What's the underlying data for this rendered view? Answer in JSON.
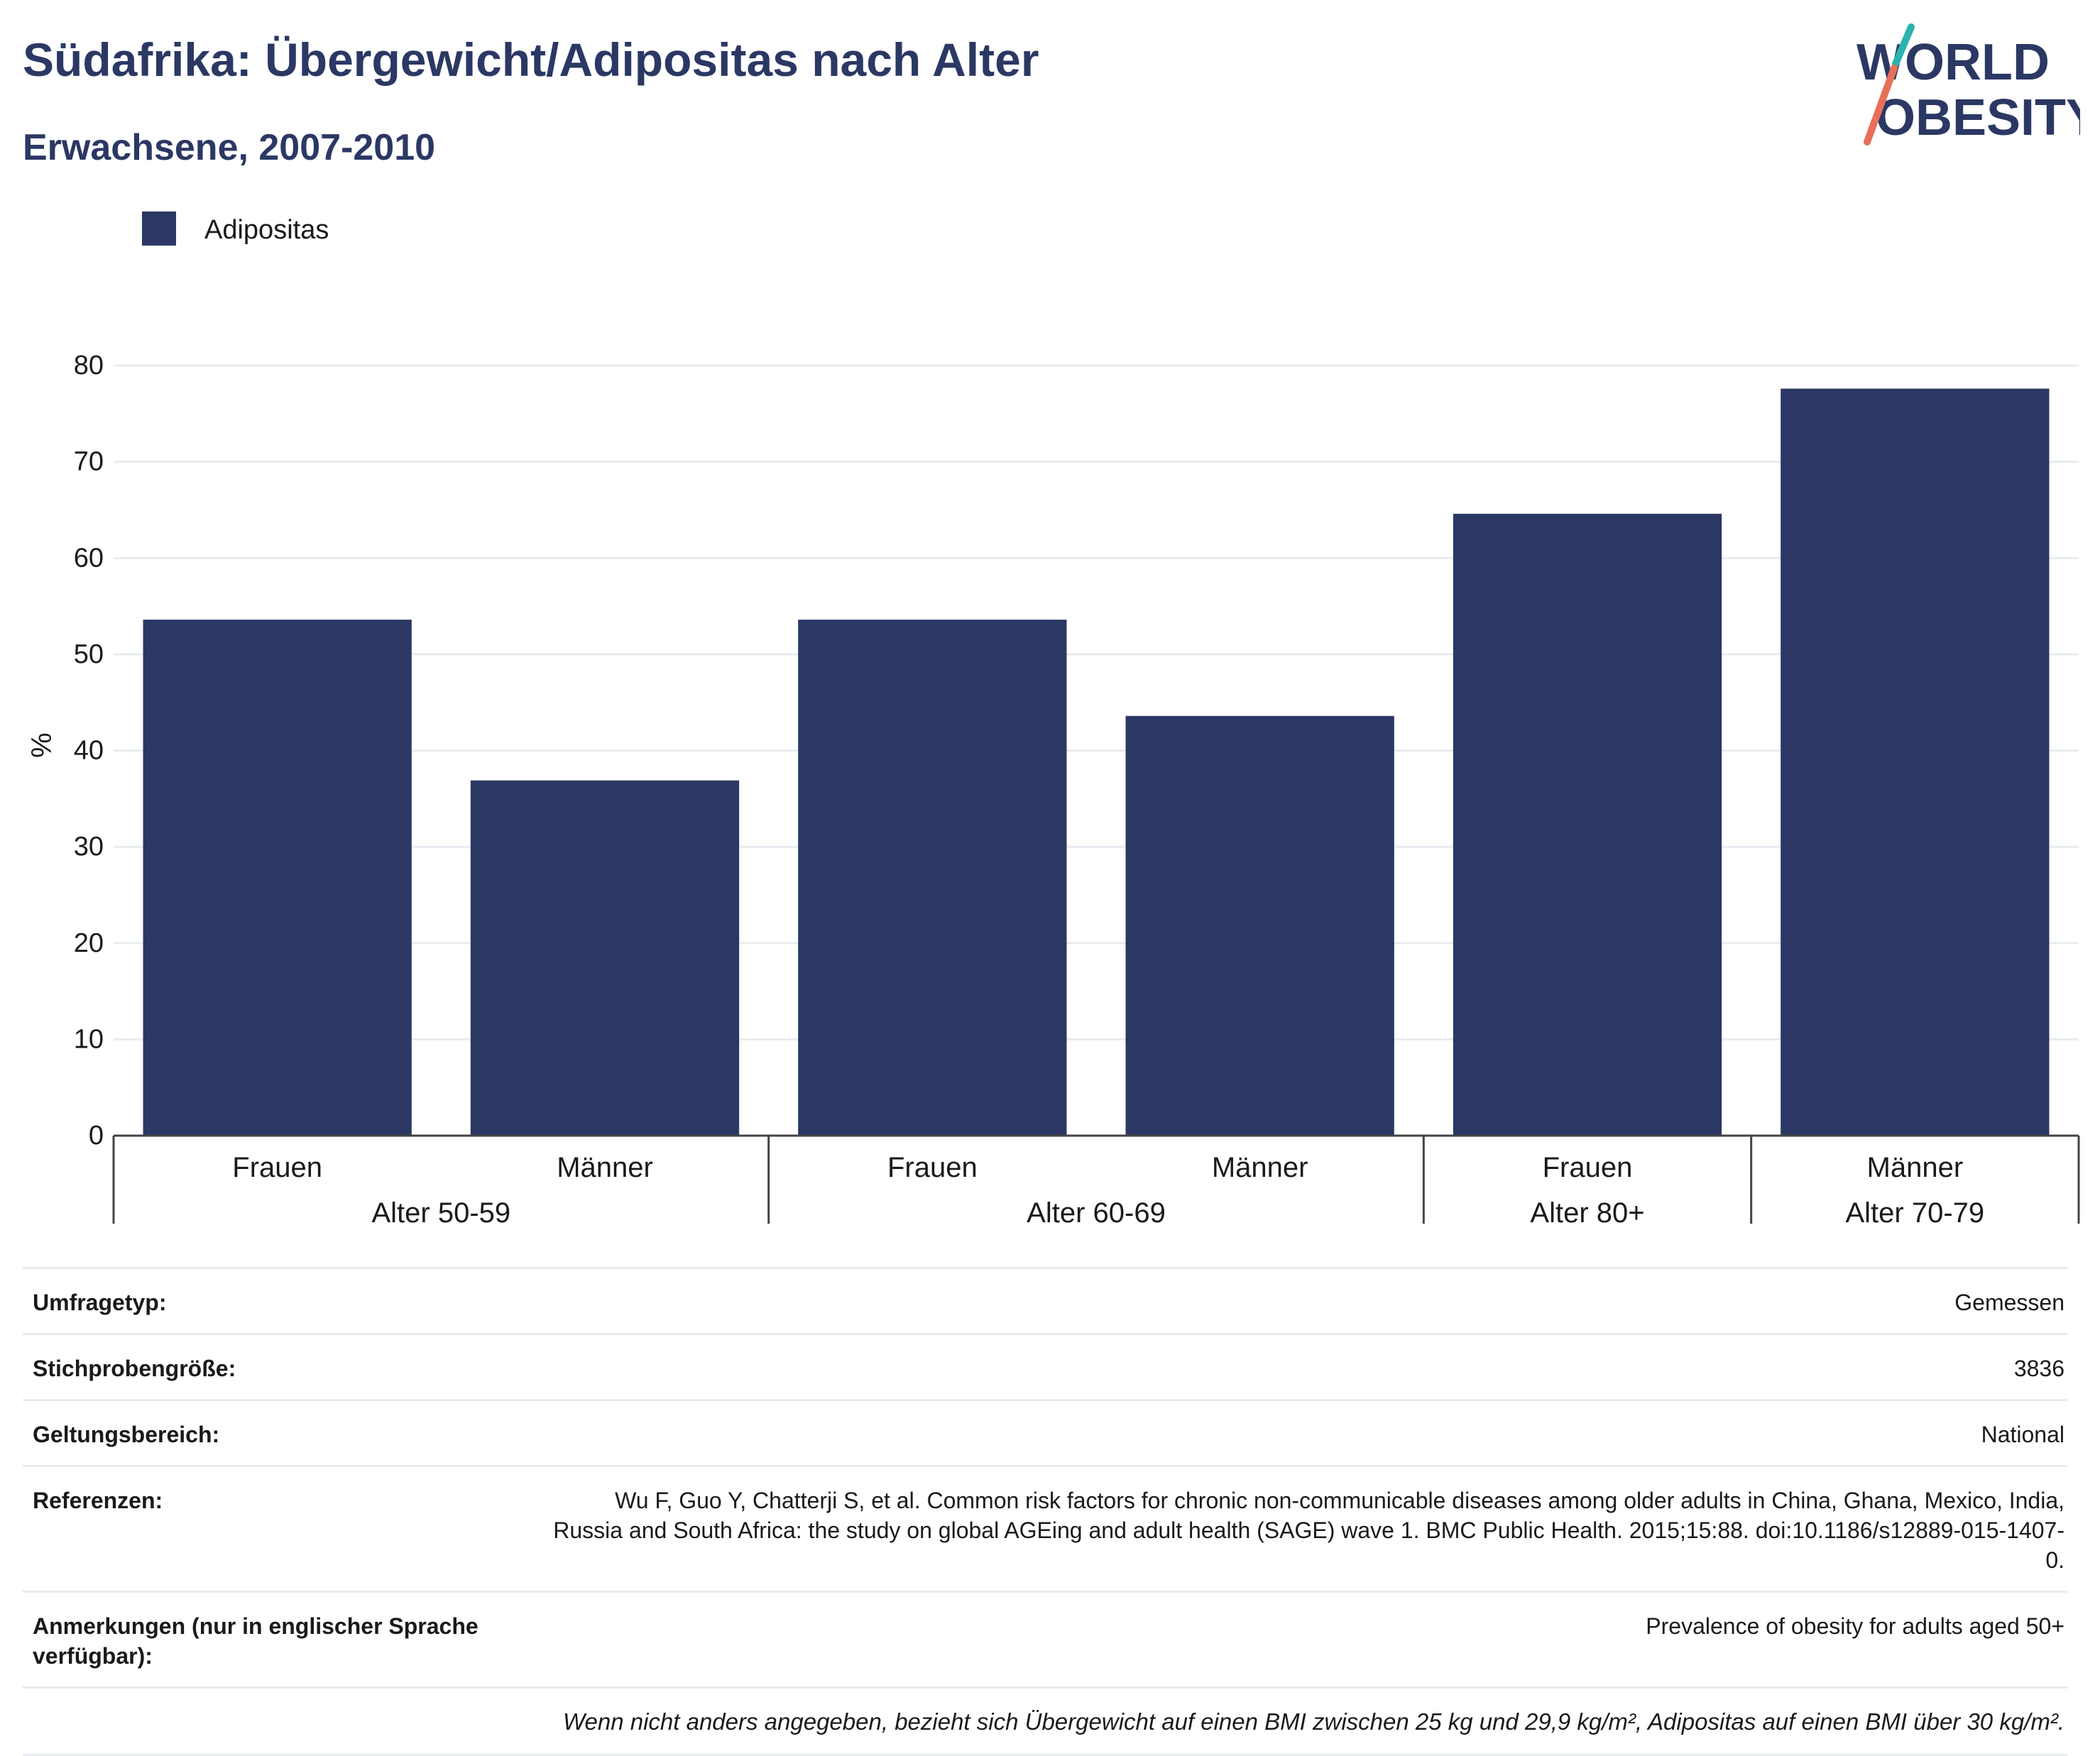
{
  "header": {
    "title": "Südafrika: Übergewicht/Adipositas nach Alter",
    "subtitle": "Erwachsene, 2007-2010"
  },
  "logo": {
    "line1": "WORLD",
    "line2": "OBESITY",
    "colors": {
      "text": "#2b3864",
      "slash_top": "#2bb3ad",
      "slash_bottom": "#e8705a"
    }
  },
  "chart_data": {
    "type": "bar",
    "title": "Südafrika: Übergewicht/Adipositas nach Alter",
    "subtitle": "Erwachsene, 2007-2010",
    "ylabel": "%",
    "xlabel": "",
    "ylim": [
      0,
      80
    ],
    "yticks": [
      0,
      10,
      20,
      30,
      40,
      50,
      60,
      70,
      80
    ],
    "grid": true,
    "legend": {
      "placement": "top-left",
      "entries": [
        "Adipositas"
      ]
    },
    "categories": [
      "Frauen",
      "Männer",
      "Frauen",
      "Männer",
      "Frauen",
      "Männer"
    ],
    "groups": [
      {
        "label": "Alter 50-59",
        "count": 2
      },
      {
        "label": "Alter 60-69",
        "count": 2
      },
      {
        "label": "Alter 80+",
        "count": 1
      },
      {
        "label": "Alter 70-79",
        "count": 1
      }
    ],
    "series": [
      {
        "name": "Adipositas",
        "color": "#2b3864",
        "values": [
          53.6,
          36.9,
          53.6,
          43.6,
          64.6,
          77.6
        ]
      }
    ]
  },
  "meta": {
    "rows": [
      {
        "label": "Umfragetyp:",
        "value": "Gemessen"
      },
      {
        "label": "Stichprobengröße:",
        "value": "3836"
      },
      {
        "label": "Geltungsbereich:",
        "value": "National"
      },
      {
        "label": "Referenzen:",
        "value": "Wu F, Guo Y, Chatterji S, et al. Common risk factors for chronic non-communicable diseases among older adults in China, Ghana, Mexico, India, Russia and South Africa: the study on global AGEing and adult health (SAGE) wave 1. BMC Public Health. 2015;15:88. doi:10.1186/s12889-015-1407-0."
      },
      {
        "label": "Anmerkungen (nur in englischer Sprache verfügbar):",
        "value": "Prevalence of obesity for adults aged 50+"
      }
    ],
    "footnote": "Wenn nicht anders angegeben, bezieht sich Übergewicht auf einen BMI zwischen 25 kg und 29,9 kg/m², Adipositas auf einen BMI über 30 kg/m²."
  }
}
